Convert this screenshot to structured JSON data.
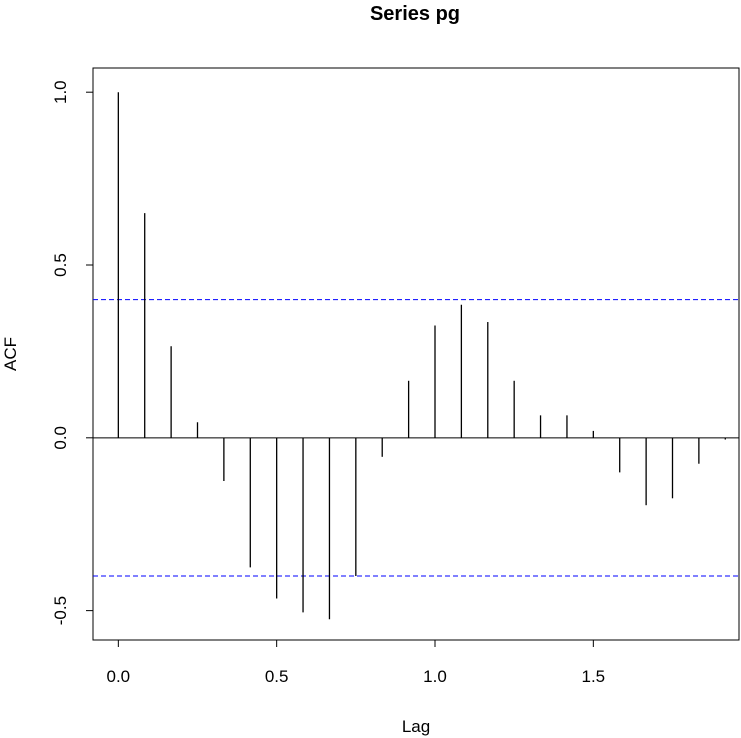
{
  "chart_data": {
    "type": "bar",
    "title": "Series  pg",
    "xlabel": "Lag",
    "ylabel": "ACF",
    "xlim": [
      -0.08,
      1.96
    ],
    "ylim": [
      -0.585,
      1.07
    ],
    "x_ticks": [
      0,
      0.5,
      1,
      1.5
    ],
    "x_tick_labels": [
      "0.0",
      "0.5",
      "1.0",
      "1.5"
    ],
    "y_ticks": [
      -0.5,
      0,
      0.5,
      1
    ],
    "y_tick_labels": [
      "-0.5",
      "0.0",
      "0.5",
      "1.0"
    ],
    "confidence_bound": 0.4,
    "confidence_color": "#0000ff",
    "lags": [
      0,
      0.0833,
      0.1667,
      0.25,
      0.3333,
      0.4167,
      0.5,
      0.5833,
      0.6667,
      0.75,
      0.8333,
      0.9167,
      1.0,
      1.0833,
      1.1667,
      1.25,
      1.3333,
      1.4167,
      1.5,
      1.5833,
      1.6667,
      1.75,
      1.8333,
      1.9167
    ],
    "acf": [
      1.0,
      0.65,
      0.265,
      0.045,
      -0.125,
      -0.375,
      -0.465,
      -0.505,
      -0.525,
      -0.4,
      -0.055,
      0.165,
      0.325,
      0.385,
      0.335,
      0.165,
      0.065,
      0.065,
      0.02,
      -0.1,
      -0.195,
      -0.175,
      -0.075,
      -0.005
    ]
  }
}
